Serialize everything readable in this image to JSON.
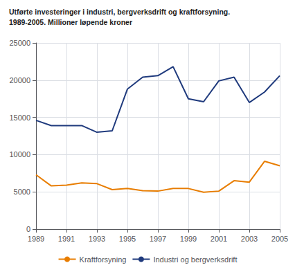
{
  "chart_data": {
    "type": "line",
    "title": "Utførte investeringer i industri, bergverksdrift og kraftforsyning.",
    "subtitle": "1989-2005. Millioner løpende kroner",
    "x": [
      1989,
      1990,
      1991,
      1992,
      1993,
      1994,
      1995,
      1996,
      1997,
      1998,
      1999,
      2000,
      2001,
      2002,
      2003,
      2004,
      2005
    ],
    "series": [
      {
        "name": "Kraftforsyning",
        "color": "#e87d00",
        "values": [
          7300,
          5800,
          5900,
          6200,
          6100,
          5300,
          5450,
          5150,
          5100,
          5450,
          5450,
          4950,
          5100,
          6500,
          6300,
          9100,
          8500
        ]
      },
      {
        "name": "Industri og bergverksdrift",
        "color": "#1f3a7d",
        "values": [
          14600,
          13900,
          13900,
          13900,
          13000,
          13200,
          18800,
          20400,
          20600,
          21800,
          17500,
          17100,
          19900,
          20400,
          17000,
          18400,
          20600
        ]
      }
    ],
    "xlim": [
      1989,
      2005
    ],
    "xticks": [
      1989,
      1991,
      1993,
      1995,
      1997,
      1999,
      2001,
      2003,
      2005
    ],
    "ylim": [
      0,
      25000
    ],
    "yticks": [
      0,
      5000,
      10000,
      15000,
      20000,
      25000
    ],
    "grid": true,
    "legend": "bottom"
  }
}
